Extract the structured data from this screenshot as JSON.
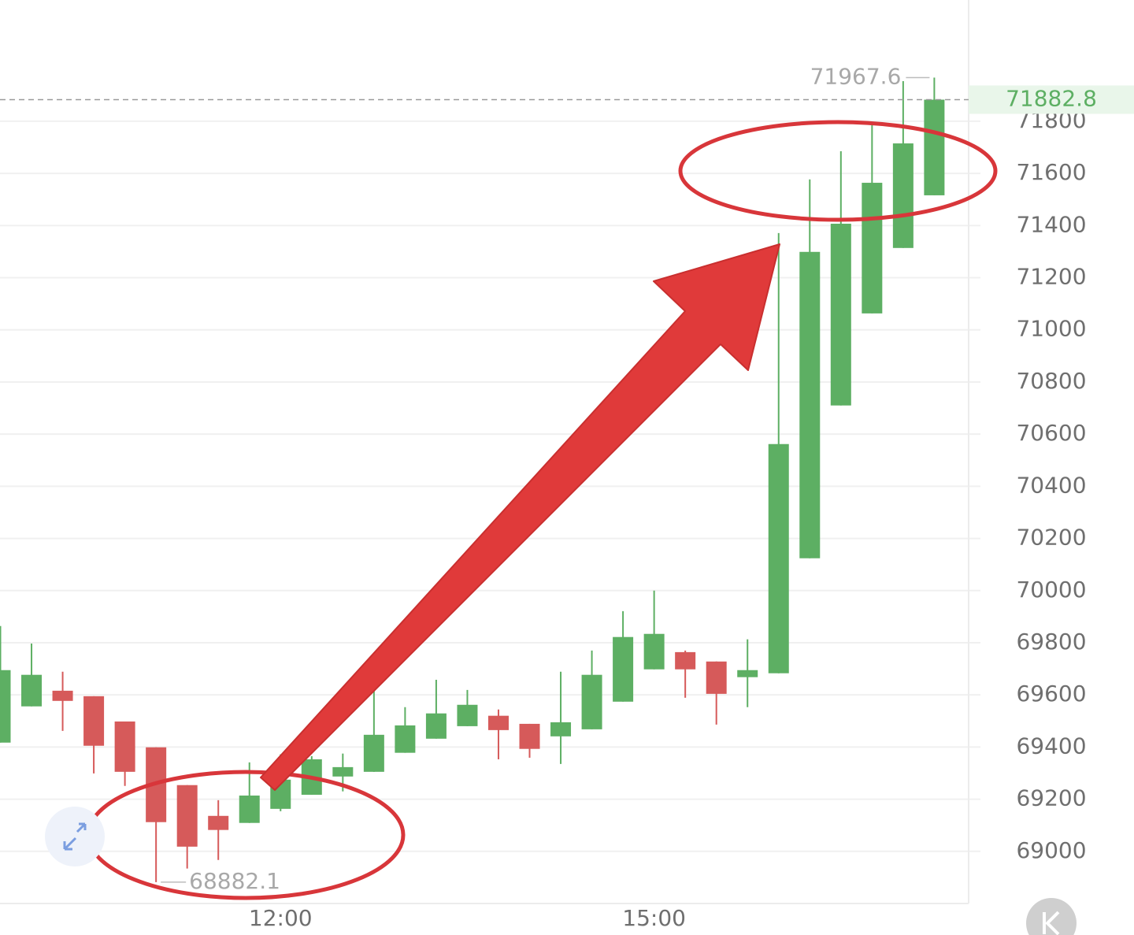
{
  "chart_data": {
    "type": "candlestick",
    "categories": [
      null,
      null,
      null,
      null,
      null,
      null,
      null,
      null,
      null,
      "12:00",
      null,
      null,
      null,
      null,
      null,
      null,
      null,
      null,
      null,
      null,
      null,
      "15:00",
      null,
      null,
      null,
      null,
      null,
      null,
      null,
      null,
      null
    ],
    "open": [
      69417,
      69556,
      69616,
      69595,
      69498,
      69399,
      69254,
      69136,
      69109,
      69163,
      69217,
      69287,
      69305,
      69378,
      69432,
      69480,
      69520,
      69489,
      69441,
      69468,
      69574,
      69698,
      69764,
      69728,
      69668,
      69683,
      70124,
      70710,
      71063,
      71314,
      71516
    ],
    "high": [
      69864,
      69797,
      69689,
      69595,
      69498,
      69399,
      69254,
      69196,
      69341,
      69372,
      69365,
      69375,
      69619,
      69553,
      69658,
      69619,
      69544,
      69489,
      69689,
      69770,
      69921,
      70000,
      69770,
      69728,
      69813,
      71371,
      71577,
      71685,
      71788,
      71954,
      71967.6
    ],
    "low": [
      69417,
      69556,
      69462,
      69299,
      69251,
      68882.1,
      68934,
      68967,
      69109,
      69154,
      69217,
      69230,
      69305,
      69378,
      69432,
      69480,
      69353,
      69359,
      69335,
      69468,
      69574,
      69698,
      69589,
      69486,
      69553,
      69683,
      70124,
      70710,
      71063,
      71314,
      71516
    ],
    "close": [
      69695,
      69677,
      69577,
      69405,
      69305,
      69112,
      69018,
      69082,
      69214,
      69275,
      69353,
      69323,
      69447,
      69483,
      69529,
      69562,
      69465,
      69393,
      69495,
      69677,
      69822,
      69834,
      69698,
      69604,
      69695,
      70562,
      71299,
      71407,
      71564,
      71715,
      71882.8
    ],
    "up_color": "#5daf63",
    "down_color": "#d65a5a",
    "ylim": [
      68800,
      72265
    ],
    "yticks": [
      69000,
      69200,
      69400,
      69600,
      69800,
      70000,
      70200,
      70400,
      70600,
      70800,
      71000,
      71200,
      71400,
      71600,
      71800
    ],
    "grid": true
  }
}
